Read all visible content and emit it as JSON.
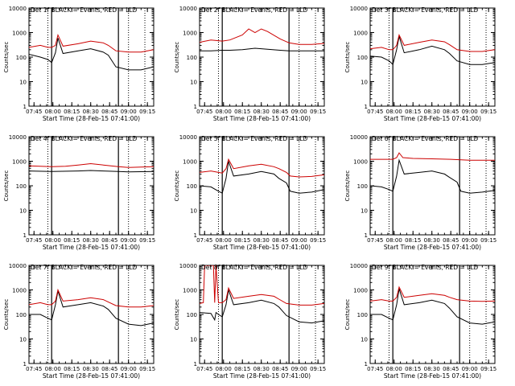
{
  "chart_data": [
    {
      "type": "line",
      "title": "Det 1f BLACK = Events, RED = LLD",
      "xlabel": "Start Time (28-Feb-15 07:41:00)",
      "ylabel": "Counts/sec",
      "yscale": "log",
      "ylim": [
        1,
        10000
      ],
      "xlim": [
        "07:41",
        "09:20"
      ],
      "y_ticks": [
        "1",
        "10",
        "100",
        "1000",
        "10000"
      ],
      "x_ticks": [
        "07:45",
        "08:00",
        "08:15",
        "08:30",
        "08:45",
        "09:00",
        "09:15"
      ],
      "grid": false,
      "series": [
        {
          "name": "Events",
          "color": "#000000",
          "x": [
            "07:41",
            "07:50",
            "07:56",
            "07:59",
            "08:02",
            "08:04",
            "08:08",
            "08:20",
            "08:30",
            "08:40",
            "08:44",
            "08:50",
            "09:00",
            "09:10",
            "09:20"
          ],
          "values": [
            130,
            100,
            80,
            60,
            150,
            600,
            140,
            180,
            220,
            160,
            120,
            40,
            30,
            30,
            40
          ]
        },
        {
          "name": "LLD",
          "color": "#cc0000",
          "x": [
            "07:41",
            "07:50",
            "07:56",
            "07:59",
            "08:02",
            "08:04",
            "08:08",
            "08:20",
            "08:30",
            "08:40",
            "08:44",
            "08:50",
            "09:00",
            "09:10",
            "09:20"
          ],
          "values": [
            250,
            300,
            250,
            250,
            300,
            800,
            280,
            350,
            450,
            380,
            300,
            180,
            160,
            160,
            200
          ]
        }
      ],
      "vlines_solid": [
        "07:59",
        "08:52"
      ],
      "vlines_dotted": [
        "07:56",
        "09:00",
        "09:13"
      ]
    },
    {
      "type": "line",
      "title": "Det 2f BLACK = Events, RED = LLD",
      "xlabel": "Start Time (28-Feb-15 07:41:00)",
      "ylabel": "Counts/sec",
      "yscale": "log",
      "ylim": [
        1,
        10000
      ],
      "xlim": [
        "07:41",
        "09:20"
      ],
      "y_ticks": [
        "1",
        "10",
        "100",
        "1000",
        "10000"
      ],
      "x_ticks": [
        "07:45",
        "08:00",
        "08:15",
        "08:30",
        "08:45",
        "09:00",
        "09:15"
      ],
      "grid": false,
      "series": [
        {
          "name": "Events",
          "color": "#000000",
          "x": [
            "07:41",
            "07:50",
            "07:59",
            "08:05",
            "08:15",
            "08:25",
            "08:35",
            "08:45",
            "08:52",
            "09:00",
            "09:10",
            "09:20"
          ],
          "values": [
            180,
            180,
            190,
            190,
            200,
            230,
            210,
            190,
            180,
            180,
            180,
            180
          ]
        },
        {
          "name": "LLD",
          "color": "#cc0000",
          "x": [
            "07:41",
            "07:50",
            "07:59",
            "08:05",
            "08:15",
            "08:20",
            "08:25",
            "08:30",
            "08:35",
            "08:45",
            "08:52",
            "09:00",
            "09:10",
            "09:20"
          ],
          "values": [
            400,
            500,
            450,
            500,
            800,
            1400,
            1000,
            1400,
            1100,
            550,
            380,
            330,
            330,
            360
          ]
        }
      ],
      "vlines_solid": [
        "07:59",
        "08:52"
      ],
      "vlines_dotted": [
        "07:56",
        "09:00",
        "09:13"
      ]
    },
    {
      "type": "line",
      "title": "Det 3f BLACK = Events, RED = LLD",
      "xlabel": "Start Time (28-Feb-15 07:41:00)",
      "ylabel": "Counts/sec",
      "yscale": "log",
      "ylim": [
        1,
        10000
      ],
      "xlim": [
        "07:41",
        "09:20"
      ],
      "y_ticks": [
        "1",
        "10",
        "100",
        "1000",
        "10000"
      ],
      "x_ticks": [
        "07:45",
        "08:00",
        "08:15",
        "08:30",
        "08:45",
        "09:00",
        "09:15"
      ],
      "grid": false,
      "series": [
        {
          "name": "Events",
          "color": "#000000",
          "x": [
            "07:41",
            "07:50",
            "07:56",
            "07:59",
            "08:02",
            "08:04",
            "08:08",
            "08:20",
            "08:30",
            "08:40",
            "08:44",
            "08:50",
            "09:00",
            "09:10",
            "09:20"
          ],
          "values": [
            110,
            100,
            70,
            50,
            200,
            700,
            150,
            200,
            280,
            200,
            140,
            70,
            50,
            50,
            60
          ]
        },
        {
          "name": "LLD",
          "color": "#cc0000",
          "x": [
            "07:41",
            "07:50",
            "07:56",
            "07:59",
            "08:02",
            "08:04",
            "08:08",
            "08:20",
            "08:30",
            "08:40",
            "08:44",
            "08:50",
            "09:00",
            "09:10",
            "09:20"
          ],
          "values": [
            220,
            250,
            200,
            200,
            300,
            800,
            300,
            400,
            500,
            420,
            320,
            200,
            170,
            170,
            200
          ]
        }
      ],
      "vlines_solid": [
        "07:59",
        "08:52"
      ],
      "vlines_dotted": [
        "07:56",
        "09:00",
        "09:13"
      ]
    },
    {
      "type": "line",
      "title": "Det 4f BLACK = Events, RED = LLD",
      "xlabel": "Start Time (28-Feb-15 07:41:00)",
      "ylabel": "Counts/sec",
      "yscale": "log",
      "ylim": [
        1,
        10000
      ],
      "xlim": [
        "07:41",
        "09:20"
      ],
      "y_ticks": [
        "1",
        "10",
        "100",
        "1000",
        "10000"
      ],
      "x_ticks": [
        "07:45",
        "08:00",
        "08:15",
        "08:30",
        "08:45",
        "09:00",
        "09:15"
      ],
      "grid": false,
      "series": [
        {
          "name": "Events",
          "color": "#000000",
          "x": [
            "07:41",
            "07:59",
            "08:20",
            "08:30",
            "08:40",
            "08:52",
            "09:00",
            "09:20"
          ],
          "values": [
            400,
            380,
            400,
            420,
            400,
            380,
            370,
            380
          ]
        },
        {
          "name": "LLD",
          "color": "#cc0000",
          "x": [
            "07:41",
            "07:59",
            "08:10",
            "08:20",
            "08:30",
            "08:40",
            "08:52",
            "09:00",
            "09:20"
          ],
          "values": [
            650,
            600,
            620,
            700,
            800,
            700,
            600,
            560,
            600
          ]
        }
      ],
      "vlines_solid": [
        "07:59",
        "08:52"
      ],
      "vlines_dotted": [
        "07:56",
        "09:00",
        "09:13"
      ]
    },
    {
      "type": "line",
      "title": "Det 5f BLACK = Events, RED = LLD",
      "xlabel": "Start Time (28-Feb-15 07:41:00)",
      "ylabel": "Counts/sec",
      "yscale": "log",
      "ylim": [
        1,
        10000
      ],
      "xlim": [
        "07:41",
        "09:20"
      ],
      "y_ticks": [
        "1",
        "10",
        "100",
        "1000",
        "10000"
      ],
      "x_ticks": [
        "07:45",
        "08:00",
        "08:15",
        "08:30",
        "08:45",
        "09:00",
        "09:15"
      ],
      "grid": false,
      "series": [
        {
          "name": "Events",
          "color": "#000000",
          "x": [
            "07:41",
            "07:50",
            "07:56",
            "07:59",
            "08:02",
            "08:04",
            "08:08",
            "08:20",
            "08:30",
            "08:40",
            "08:44",
            "08:50",
            "08:53",
            "09:00",
            "09:10",
            "09:20"
          ],
          "values": [
            100,
            90,
            60,
            50,
            200,
            1000,
            250,
            300,
            380,
            300,
            200,
            130,
            60,
            50,
            55,
            70
          ]
        },
        {
          "name": "LLD",
          "color": "#cc0000",
          "x": [
            "07:41",
            "07:50",
            "07:56",
            "07:59",
            "08:02",
            "08:04",
            "08:08",
            "08:20",
            "08:30",
            "08:40",
            "08:44",
            "08:50",
            "08:53",
            "09:00",
            "09:10",
            "09:20"
          ],
          "values": [
            350,
            400,
            350,
            330,
            500,
            1200,
            500,
            650,
            750,
            600,
            500,
            350,
            250,
            230,
            240,
            280
          ]
        }
      ],
      "vlines_solid": [
        "07:59",
        "08:52"
      ],
      "vlines_dotted": [
        "07:56",
        "09:00",
        "09:13"
      ]
    },
    {
      "type": "line",
      "title": "Det 6f BLACK = Events, RED = LLD",
      "xlabel": "Start Time (28-Feb-15 07:41:00)",
      "ylabel": "Counts/sec",
      "yscale": "log",
      "ylim": [
        1,
        10000
      ],
      "xlim": [
        "07:41",
        "09:20"
      ],
      "y_ticks": [
        "1",
        "10",
        "100",
        "1000",
        "10000"
      ],
      "x_ticks": [
        "07:45",
        "08:00",
        "08:15",
        "08:30",
        "08:45",
        "09:00",
        "09:15"
      ],
      "grid": false,
      "series": [
        {
          "name": "Events",
          "color": "#000000",
          "x": [
            "07:41",
            "07:50",
            "07:56",
            "07:59",
            "08:02",
            "08:04",
            "08:08",
            "08:20",
            "08:30",
            "08:40",
            "08:44",
            "08:50",
            "08:53",
            "09:00",
            "09:10",
            "09:20"
          ],
          "values": [
            100,
            90,
            70,
            60,
            250,
            1100,
            300,
            350,
            400,
            300,
            220,
            140,
            60,
            50,
            55,
            65
          ]
        },
        {
          "name": "LLD",
          "color": "#cc0000",
          "x": [
            "07:41",
            "07:50",
            "07:59",
            "08:02",
            "08:04",
            "08:07",
            "08:15",
            "08:30",
            "08:45",
            "09:00",
            "09:20"
          ],
          "values": [
            1200,
            1200,
            1200,
            1400,
            2200,
            1400,
            1300,
            1250,
            1200,
            1100,
            1100
          ]
        }
      ],
      "vlines_solid": [
        "07:59",
        "08:52"
      ],
      "vlines_dotted": [
        "07:56",
        "09:00",
        "09:13"
      ]
    },
    {
      "type": "line",
      "title": "Det 7f BLACK = Events, RED = LLD",
      "xlabel": "Start Time (28-Feb-15 07:41:00)",
      "ylabel": "Counts/sec",
      "yscale": "log",
      "ylim": [
        1,
        10000
      ],
      "xlim": [
        "07:41",
        "09:20"
      ],
      "y_ticks": [
        "1",
        "10",
        "100",
        "1000",
        "10000"
      ],
      "x_ticks": [
        "07:45",
        "08:00",
        "08:15",
        "08:30",
        "08:45",
        "09:00",
        "09:15"
      ],
      "grid": false,
      "series": [
        {
          "name": "Events",
          "color": "#000000",
          "x": [
            "07:41",
            "07:50",
            "07:56",
            "07:59",
            "08:02",
            "08:04",
            "08:08",
            "08:20",
            "08:30",
            "08:40",
            "08:44",
            "08:50",
            "09:00",
            "09:10",
            "09:20"
          ],
          "values": [
            100,
            100,
            70,
            60,
            250,
            900,
            200,
            250,
            300,
            220,
            160,
            70,
            40,
            35,
            45
          ]
        },
        {
          "name": "LLD",
          "color": "#cc0000",
          "x": [
            "07:41",
            "07:50",
            "07:56",
            "07:59",
            "08:02",
            "08:04",
            "08:08",
            "08:20",
            "08:30",
            "08:40",
            "08:44",
            "08:50",
            "09:00",
            "09:10",
            "09:20"
          ],
          "values": [
            250,
            300,
            250,
            250,
            350,
            1000,
            350,
            400,
            480,
            400,
            320,
            230,
            200,
            200,
            230
          ]
        }
      ],
      "vlines_solid": [
        "07:59",
        "08:52"
      ],
      "vlines_dotted": [
        "07:56",
        "09:00",
        "09:13"
      ]
    },
    {
      "type": "line",
      "title": "Det 8f BLACK = Events, RED = LLD",
      "xlabel": "Start Time (28-Feb-15 07:41:00)",
      "ylabel": "Counts/sec",
      "yscale": "log",
      "ylim": [
        1,
        10000
      ],
      "xlim": [
        "07:41",
        "09:20"
      ],
      "y_ticks": [
        "1",
        "10",
        "100",
        "1000",
        "10000"
      ],
      "x_ticks": [
        "07:45",
        "08:00",
        "08:15",
        "08:30",
        "08:45",
        "09:00",
        "09:15"
      ],
      "grid": false,
      "series": [
        {
          "name": "Events",
          "color": "#000000",
          "x": [
            "07:41",
            "07:50",
            "07:53",
            "07:54",
            "07:56",
            "07:59",
            "08:02",
            "08:04",
            "08:08",
            "08:20",
            "08:30",
            "08:40",
            "08:44",
            "08:50",
            "09:00",
            "09:10",
            "09:20"
          ],
          "values": [
            120,
            110,
            60,
            120,
            100,
            80,
            250,
            1000,
            250,
            300,
            380,
            280,
            200,
            90,
            50,
            45,
            55
          ]
        },
        {
          "name": "LLD",
          "color": "#cc0000",
          "x": [
            "07:41",
            "07:44",
            "07:45",
            "07:52",
            "07:53",
            "07:54",
            "07:56",
            "07:59",
            "08:02",
            "08:04",
            "08:08",
            "08:20",
            "08:30",
            "08:40",
            "08:44",
            "08:50",
            "09:00",
            "09:10",
            "09:20"
          ],
          "values": [
            280,
            300,
            10000,
            10000,
            300,
            10000,
            300,
            300,
            400,
            1200,
            450,
            550,
            650,
            550,
            420,
            280,
            240,
            240,
            280
          ]
        }
      ],
      "vlines_solid": [
        "07:59",
        "08:52"
      ],
      "vlines_dotted": [
        "07:56",
        "09:00",
        "09:13"
      ]
    },
    {
      "type": "line",
      "title": "Det 9f BLACK = Events, RED = LLD",
      "xlabel": "Start Time (28-Feb-15 07:41:00)",
      "ylabel": "Counts/sec",
      "yscale": "log",
      "ylim": [
        1,
        10000
      ],
      "xlim": [
        "07:41",
        "09:20"
      ],
      "y_ticks": [
        "1",
        "10",
        "100",
        "1000",
        "10000"
      ],
      "x_ticks": [
        "07:45",
        "08:00",
        "08:15",
        "08:30",
        "08:45",
        "09:00",
        "09:15"
      ],
      "grid": false,
      "series": [
        {
          "name": "Events",
          "color": "#000000",
          "x": [
            "07:41",
            "07:50",
            "07:56",
            "07:59",
            "08:02",
            "08:04",
            "08:08",
            "08:20",
            "08:30",
            "08:40",
            "08:44",
            "08:50",
            "09:00",
            "09:10",
            "09:20"
          ],
          "values": [
            100,
            100,
            70,
            60,
            250,
            1100,
            250,
            300,
            380,
            280,
            180,
            80,
            45,
            40,
            50
          ]
        },
        {
          "name": "LLD",
          "color": "#cc0000",
          "x": [
            "07:41",
            "07:50",
            "07:56",
            "07:59",
            "08:02",
            "08:04",
            "08:08",
            "08:20",
            "08:30",
            "08:40",
            "08:44",
            "08:50",
            "09:00",
            "09:10",
            "09:20"
          ],
          "values": [
            350,
            400,
            350,
            350,
            500,
            1300,
            500,
            600,
            700,
            600,
            500,
            400,
            350,
            340,
            350
          ]
        }
      ],
      "vlines_solid": [
        "07:59",
        "08:52"
      ],
      "vlines_dotted": [
        "07:56",
        "09:00",
        "09:13"
      ]
    }
  ]
}
